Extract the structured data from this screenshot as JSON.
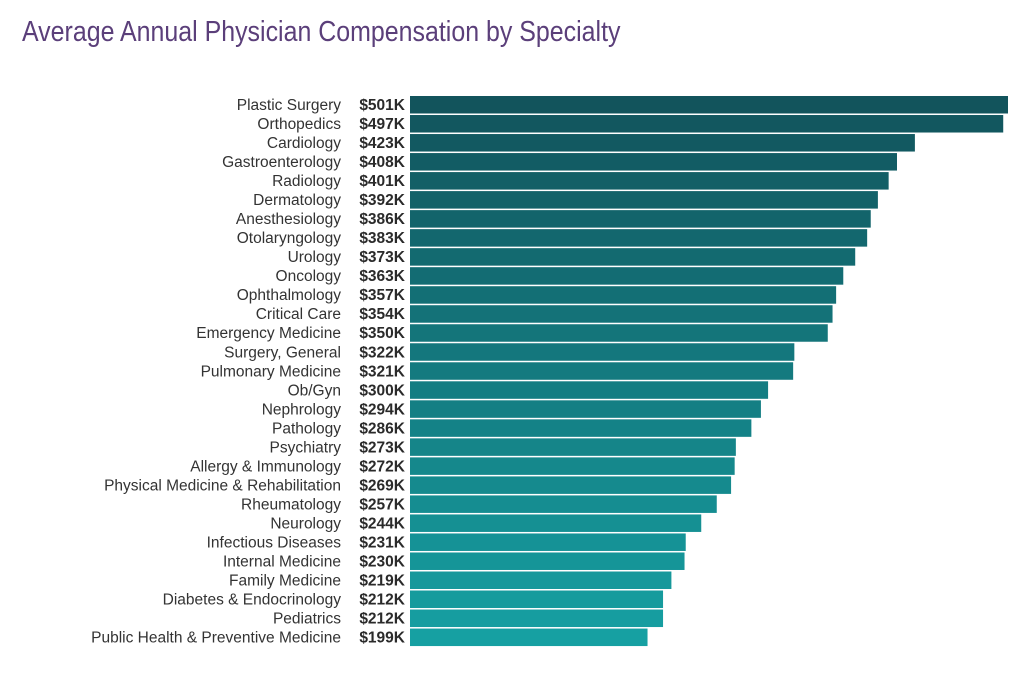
{
  "chart_data": {
    "type": "bar",
    "orientation": "horizontal",
    "title": "Average Annual Physician Compensation by Specialty",
    "xlabel": "",
    "ylabel": "",
    "grid": false,
    "value_format": "$%dK",
    "categories": [
      "Plastic Surgery",
      "Orthopedics",
      "Cardiology",
      "Gastroenterology",
      "Radiology",
      "Dermatology",
      "Anesthesiology",
      "Otolaryngology",
      "Urology",
      "Oncology",
      "Ophthalmology",
      "Critical Care",
      "Emergency Medicine",
      "Surgery, General",
      "Pulmonary Medicine",
      "Ob/Gyn",
      "Nephrology",
      "Pathology",
      "Psychiatry",
      "Allergy & Immunology",
      "Physical Medicine & Rehabilitation",
      "Rheumatology",
      "Neurology",
      "Infectious Diseases",
      "Internal Medicine",
      "Family Medicine",
      "Diabetes & Endocrinology",
      "Pediatrics",
      "Public Health & Preventive Medicine"
    ],
    "values": [
      501,
      497,
      423,
      408,
      401,
      392,
      386,
      383,
      373,
      363,
      357,
      354,
      350,
      322,
      321,
      300,
      294,
      286,
      273,
      272,
      269,
      257,
      244,
      231,
      230,
      219,
      212,
      212,
      199
    ],
    "labels": [
      "$501K",
      "$497K",
      "$423K",
      "$408K",
      "$401K",
      "$392K",
      "$386K",
      "$383K",
      "$373K",
      "$363K",
      "$357K",
      "$354K",
      "$350K",
      "$322K",
      "$321K",
      "$300K",
      "$294K",
      "$286K",
      "$273K",
      "$272K",
      "$269K",
      "$257K",
      "$244K",
      "$231K",
      "$230K",
      "$219K",
      "$212K",
      "$212K",
      "$199K"
    ],
    "colors": {
      "top": "#12545c",
      "bottom": "#16a0a2",
      "title": "#5b3f7a"
    }
  }
}
